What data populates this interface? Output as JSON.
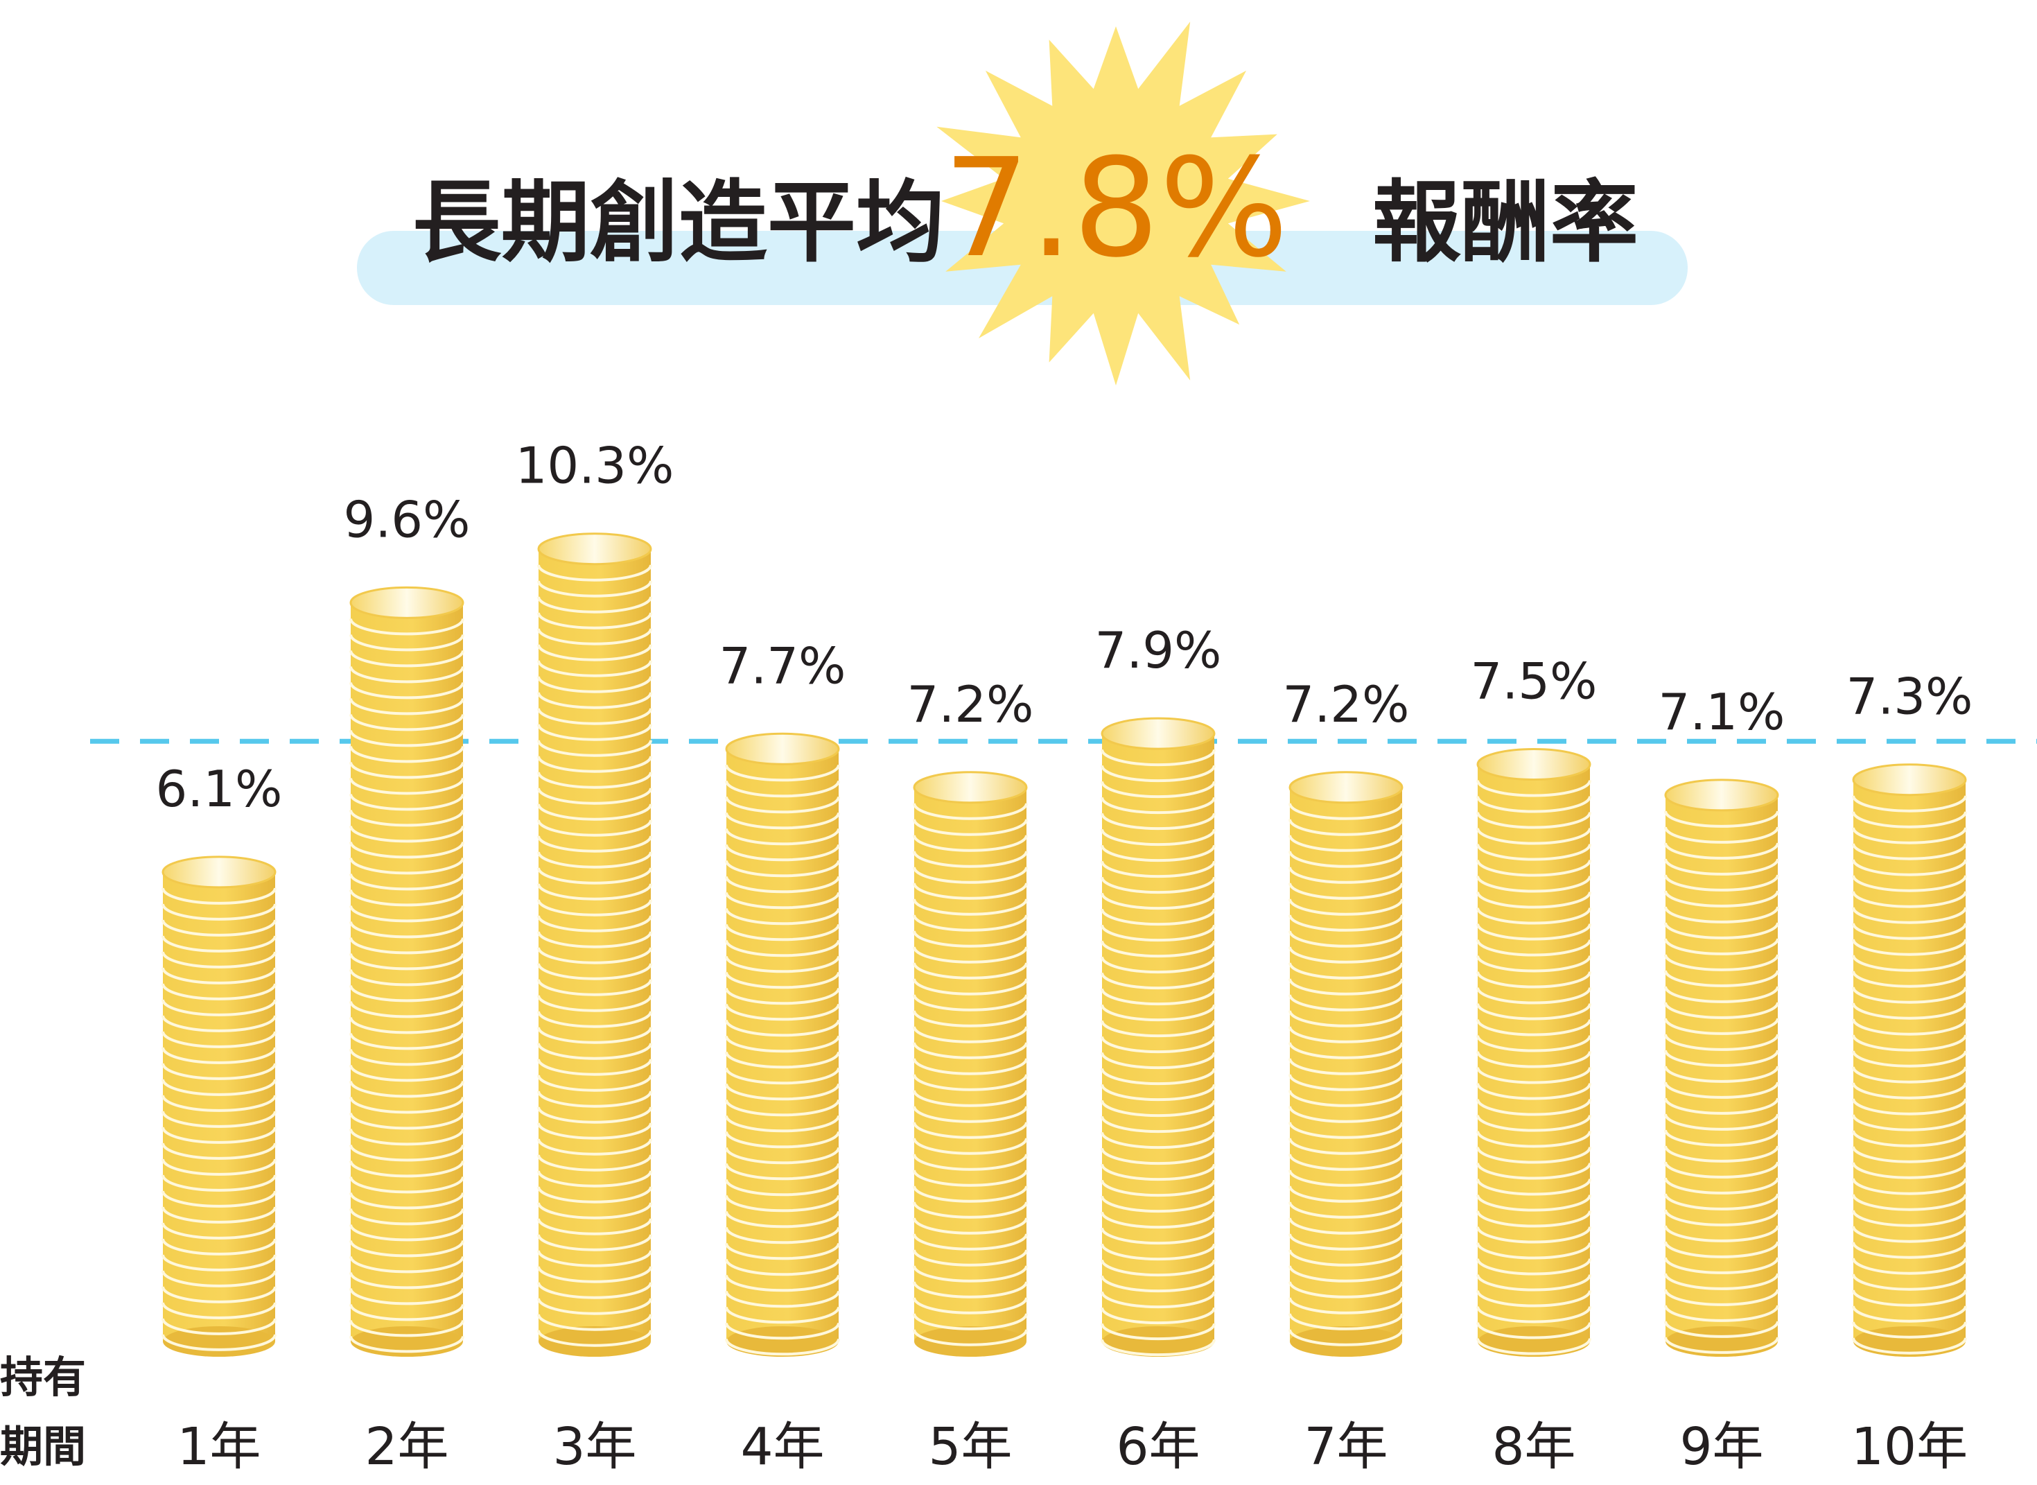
{
  "title": {
    "prefix": "長期創造平均",
    "highlight": "7.8%",
    "suffix": "報酬率"
  },
  "colors": {
    "title_band": "#d7f1fb",
    "burst": "#fde47a",
    "highlight_text": "#e07b00",
    "coin_face": "#f2c94c",
    "coin_rim": "#fff8dc",
    "average_line": "#56c8ec"
  },
  "icons": {
    "burst": "starburst-icon",
    "bar": "coin-stack-icon"
  },
  "chart_data": {
    "type": "bar",
    "xlabel": "持有期間",
    "xlabel_lines": [
      "持有",
      "期間"
    ],
    "categories": [
      "1年",
      "2年",
      "3年",
      "4年",
      "5年",
      "6年",
      "7年",
      "8年",
      "9年",
      "10年"
    ],
    "values": [
      6.1,
      9.6,
      10.3,
      7.7,
      7.2,
      7.9,
      7.2,
      7.5,
      7.1,
      7.3
    ],
    "value_labels": [
      "6.1%",
      "9.6%",
      "10.3%",
      "7.7%",
      "7.2%",
      "7.9%",
      "7.2%",
      "7.5%",
      "7.1%",
      "7.3%"
    ],
    "reference_line": {
      "value": 7.8,
      "style": "dashed"
    },
    "ylim": [
      0,
      12
    ],
    "grid": false,
    "legend": "none"
  }
}
